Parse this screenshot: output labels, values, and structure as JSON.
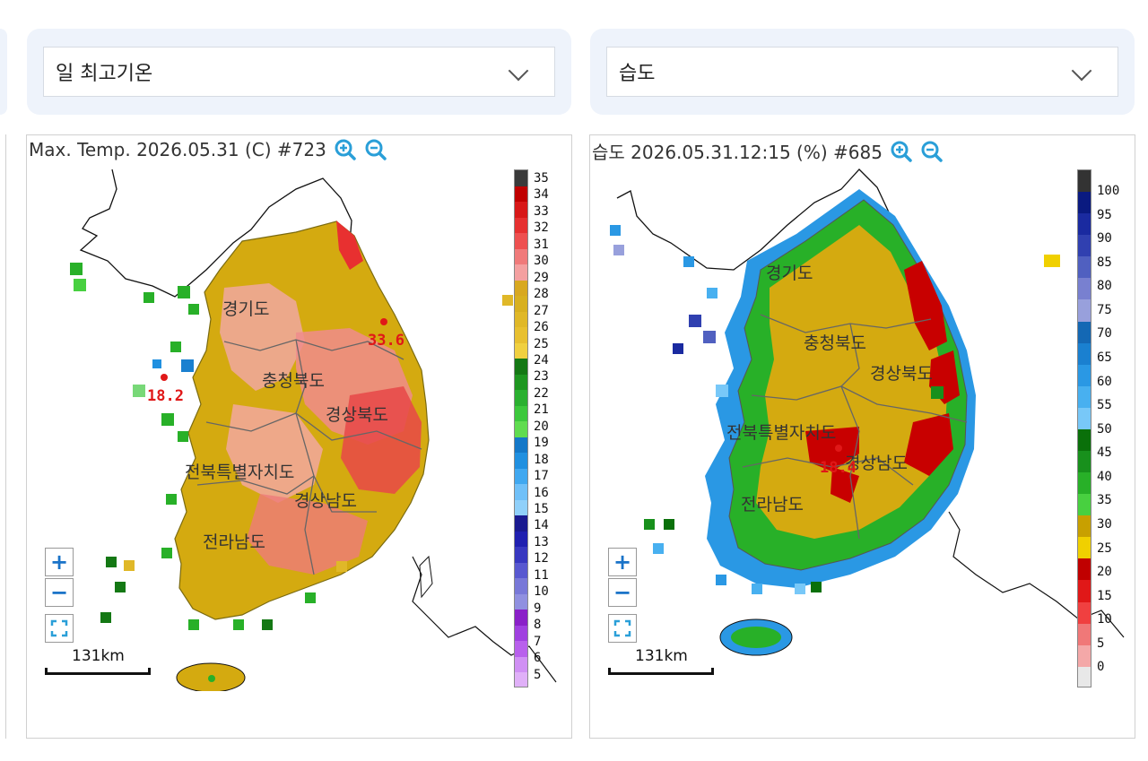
{
  "selectors": {
    "left": {
      "value": "일 최고기온"
    },
    "right": {
      "value": "습도"
    }
  },
  "panels": {
    "left": {
      "title": "Max. Temp. 2026.05.31 (C) #723",
      "regions": [
        "경기도",
        "충청북도",
        "경상북도",
        "전북특별자치도",
        "경상남도",
        "전라남도"
      ],
      "annotations": [
        "33.6",
        "18.2"
      ],
      "scale": "131km",
      "legend_labels": [
        "35",
        "34",
        "33",
        "32",
        "31",
        "30",
        "29",
        "28",
        "27",
        "26",
        "25",
        "24",
        "23",
        "22",
        "21",
        "20",
        "19",
        "18",
        "17",
        "16",
        "15",
        "14",
        "13",
        "12",
        "11",
        "10",
        "9",
        "8",
        "7",
        "6",
        "5"
      ]
    },
    "right": {
      "title": "습도 2026.05.31.12:15 (%) #685",
      "regions": [
        "경기도",
        "충청북도",
        "경상북도",
        "전북특별자치도",
        "경상남도",
        "전라남도"
      ],
      "annotations": [
        "18.4"
      ],
      "scale": "131km",
      "legend_labels": [
        "100",
        "95",
        "90",
        "85",
        "80",
        "75",
        "70",
        "65",
        "60",
        "55",
        "50",
        "45",
        "40",
        "35",
        "30",
        "25",
        "20",
        "15",
        "10",
        "5",
        "0"
      ]
    }
  },
  "controls": {
    "zoom_in": "+",
    "zoom_out": "−"
  },
  "colors": {
    "temp_legend": [
      "#3a3a3a",
      "#c00000",
      "#d81818",
      "#e63030",
      "#ee5050",
      "#f07a7a",
      "#f4a0a0",
      "#d8a820",
      "#d8b020",
      "#e0b828",
      "#e8c030",
      "#f0d040",
      "#147814",
      "#1e9620",
      "#2ab030",
      "#3cc83c",
      "#60dc50",
      "#1478c8",
      "#2090e0",
      "#40a8f0",
      "#70c0f8",
      "#90d0fa",
      "#1a1a90",
      "#2020b0",
      "#3838c0",
      "#5858d0",
      "#7878d8",
      "#9090e0",
      "#8a20c8",
      "#a040e0",
      "#b860ec",
      "#d090f4",
      "#e0b0f8"
    ],
    "hum_legend": [
      "#333333",
      "#0a1a80",
      "#1a2aa0",
      "#3040b0",
      "#5060c0",
      "#7880d0",
      "#98a0dc",
      "#1468b4",
      "#1a80d0",
      "#2a98e4",
      "#48b0f0",
      "#78c8f8",
      "#0a700a",
      "#18901c",
      "#28b028",
      "#48d040",
      "#c8a000",
      "#f0d000",
      "#c00000",
      "#e01818",
      "#f04040",
      "#f07878",
      "#f4a8a8",
      "#e8e8e8"
    ],
    "accent_zoom": "#2a9fd8"
  }
}
